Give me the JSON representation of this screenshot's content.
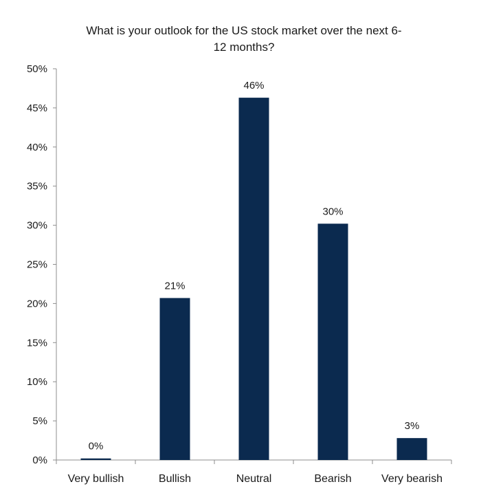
{
  "chart_data": {
    "type": "bar",
    "title_lines": [
      "What is your outlook for the US stock market over the next 6-",
      "12 months?"
    ],
    "categories": [
      "Very bullish",
      "Bullish",
      "Neutral",
      "Bearish",
      "Very bearish"
    ],
    "values": [
      0.2,
      20.7,
      46.3,
      30.2,
      2.8
    ],
    "data_labels": [
      "0%",
      "21%",
      "46%",
      "30%",
      "3%"
    ],
    "ylim": [
      0,
      50
    ],
    "yticks": [
      0,
      5,
      10,
      15,
      20,
      25,
      30,
      35,
      40,
      45,
      50
    ],
    "ytick_labels": [
      "0%",
      "5%",
      "10%",
      "15%",
      "20%",
      "25%",
      "30%",
      "35%",
      "40%",
      "45%",
      "50%"
    ],
    "grid": false,
    "legend": "none",
    "colors": {
      "bar": "#0b2a4f",
      "axis": "#8c8c8c",
      "text": "#1a1a1a"
    }
  }
}
